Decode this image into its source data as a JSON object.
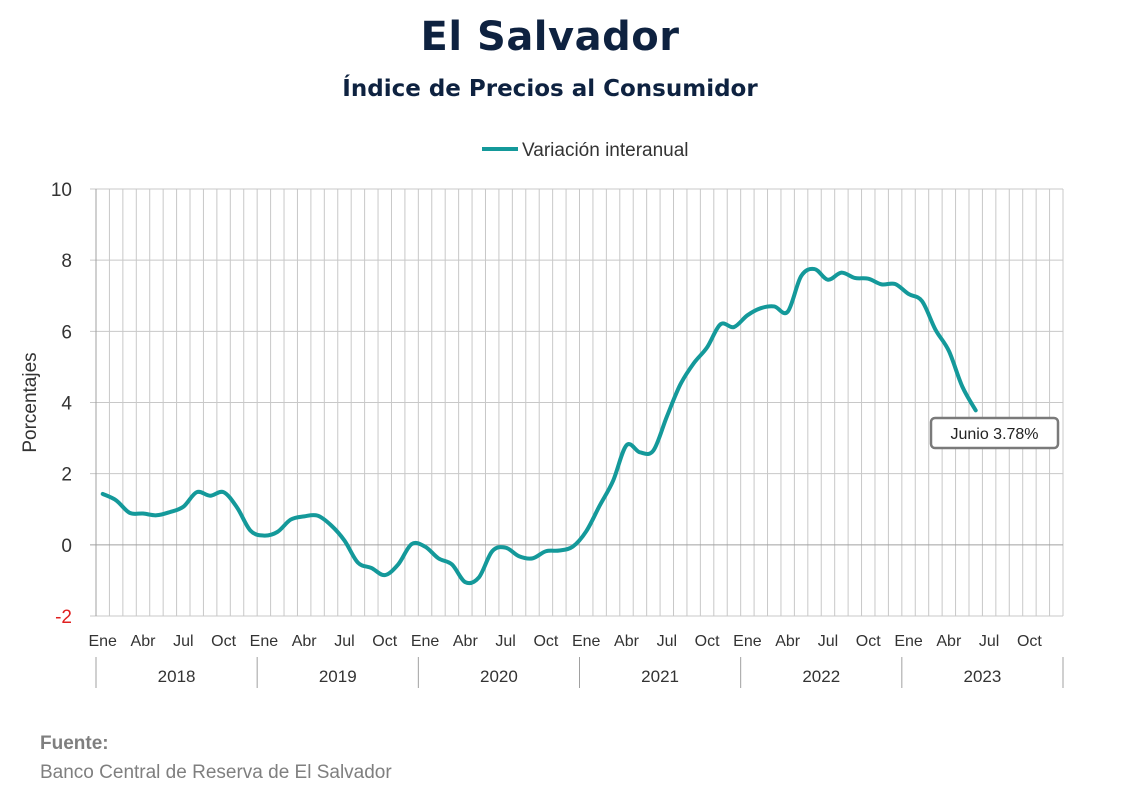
{
  "title": "El Salvador",
  "subtitle": "Índice de Precios al Consumidor",
  "source": {
    "label": "Fuente:",
    "text": "Banco Central de Reserva de El Salvador"
  },
  "colors": {
    "line": "#14999a",
    "title": "#0e2240",
    "negative_tick": "#e02020",
    "grid": "#c8c8c8"
  },
  "chart_data": {
    "type": "line",
    "title": "El Salvador",
    "subtitle": "Índice de Precios al Consumidor",
    "ylabel": "Porcentajes",
    "ylim": [
      -2,
      10
    ],
    "yticks": [
      -2,
      0,
      2,
      4,
      6,
      8,
      10
    ],
    "grid": true,
    "legend": {
      "position": "top-center",
      "entries": [
        "Variación interanual"
      ]
    },
    "years": [
      "2018",
      "2019",
      "2020",
      "2021",
      "2022",
      "2023"
    ],
    "month_tick_labels": [
      "Ene",
      "Abr",
      "Jul",
      "Oct"
    ],
    "month_tick_index": [
      0,
      3,
      6,
      9
    ],
    "annotation": {
      "text": "Junio 3.78%",
      "point": "2023-06"
    },
    "series": [
      {
        "name": "Variación interanual",
        "x": [
          "2018-01",
          "2018-02",
          "2018-03",
          "2018-04",
          "2018-05",
          "2018-06",
          "2018-07",
          "2018-08",
          "2018-09",
          "2018-10",
          "2018-11",
          "2018-12",
          "2019-01",
          "2019-02",
          "2019-03",
          "2019-04",
          "2019-05",
          "2019-06",
          "2019-07",
          "2019-08",
          "2019-09",
          "2019-10",
          "2019-11",
          "2019-12",
          "2020-01",
          "2020-02",
          "2020-03",
          "2020-04",
          "2020-05",
          "2020-06",
          "2020-07",
          "2020-08",
          "2020-09",
          "2020-10",
          "2020-11",
          "2020-12",
          "2021-01",
          "2021-02",
          "2021-03",
          "2021-04",
          "2021-05",
          "2021-06",
          "2021-07",
          "2021-08",
          "2021-09",
          "2021-10",
          "2021-11",
          "2021-12",
          "2022-01",
          "2022-02",
          "2022-03",
          "2022-04",
          "2022-05",
          "2022-06",
          "2022-07",
          "2022-08",
          "2022-09",
          "2022-10",
          "2022-11",
          "2022-12",
          "2023-01",
          "2023-02",
          "2023-03",
          "2023-04",
          "2023-05",
          "2023-06"
        ],
        "values": [
          1.43,
          1.25,
          0.9,
          0.88,
          0.83,
          0.92,
          1.07,
          1.48,
          1.38,
          1.48,
          1.05,
          0.4,
          0.26,
          0.36,
          0.71,
          0.8,
          0.82,
          0.55,
          0.12,
          -0.5,
          -0.65,
          -0.85,
          -0.55,
          0.02,
          -0.05,
          -0.38,
          -0.55,
          -1.05,
          -0.92,
          -0.18,
          -0.08,
          -0.32,
          -0.38,
          -0.18,
          -0.16,
          -0.05,
          0.38,
          1.1,
          1.8,
          2.8,
          2.6,
          2.65,
          3.6,
          4.5,
          5.1,
          5.55,
          6.2,
          6.12,
          6.45,
          6.65,
          6.7,
          6.55,
          7.55,
          7.75,
          7.45,
          7.65,
          7.5,
          7.48,
          7.32,
          7.33,
          7.05,
          6.85,
          6.05,
          5.45,
          4.45,
          3.78
        ]
      }
    ]
  }
}
